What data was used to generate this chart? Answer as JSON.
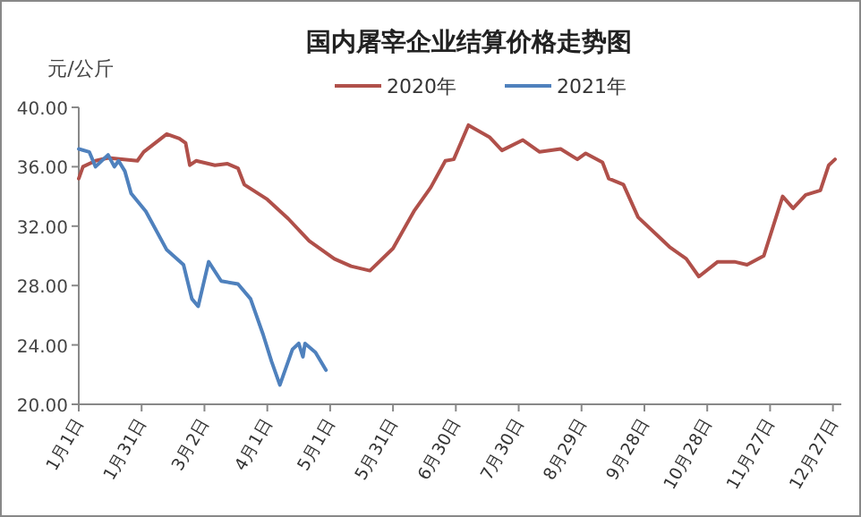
{
  "chart_data": {
    "type": "line",
    "title": "国内屠宰企业结算价格走势图",
    "ylabel": "元/公斤",
    "xlim": [
      "--01-01",
      "--12-31"
    ],
    "xticks": [
      {
        "value": "--01-01",
        "label": "1月1日"
      },
      {
        "value": "--01-31",
        "label": "1月31日"
      },
      {
        "value": "--03-02",
        "label": "3月2日"
      },
      {
        "value": "--04-01",
        "label": "4月1日"
      },
      {
        "value": "--05-01",
        "label": "5月1日"
      },
      {
        "value": "--05-31",
        "label": "5月31日"
      },
      {
        "value": "--06-30",
        "label": "6月30日"
      },
      {
        "value": "--07-30",
        "label": "7月30日"
      },
      {
        "value": "--08-29",
        "label": "8月29日"
      },
      {
        "value": "--09-28",
        "label": "9月28日"
      },
      {
        "value": "--10-28",
        "label": "10月28日"
      },
      {
        "value": "--11-27",
        "label": "11月27日"
      },
      {
        "value": "--12-27",
        "label": "12月27日"
      }
    ],
    "ylim": [
      20,
      40
    ],
    "yticks": [
      {
        "value": 20,
        "label": "20.00"
      },
      {
        "value": 24,
        "label": "24.00"
      },
      {
        "value": 28,
        "label": "28.00"
      },
      {
        "value": 32,
        "label": "32.00"
      },
      {
        "value": 36,
        "label": "36.00"
      },
      {
        "value": 40,
        "label": "40.00"
      }
    ],
    "grid": false,
    "legend": "top",
    "marker": "none",
    "line_style": "solid",
    "series": [
      {
        "name": "2020年",
        "color": "#b0504a",
        "x": [
          "--01-01",
          "--01-03",
          "--01-09",
          "--01-15",
          "--01-29",
          "--02-01",
          "--02-12",
          "--02-18",
          "--02-21",
          "--02-23",
          "--02-26",
          "--03-07",
          "--03-13",
          "--03-18",
          "--03-21",
          "--04-01",
          "--04-11",
          "--04-21",
          "--05-03",
          "--05-11",
          "--05-20",
          "--05-31",
          "--06-10",
          "--06-18",
          "--06-25",
          "--06-29",
          "--07-06",
          "--07-16",
          "--07-22",
          "--08-01",
          "--08-09",
          "--08-19",
          "--08-27",
          "--08-31",
          "--09-08",
          "--09-11",
          "--09-18",
          "--09-25",
          "--10-10",
          "--10-18",
          "--10-24",
          "--11-02",
          "--11-10",
          "--11-16",
          "--11-24",
          "--12-03",
          "--12-08",
          "--12-14",
          "--12-21",
          "--12-25",
          "--12-28"
        ],
        "values": [
          35.2,
          36.0,
          36.4,
          36.6,
          36.4,
          37.0,
          38.2,
          37.9,
          37.6,
          36.1,
          36.4,
          36.1,
          36.2,
          35.9,
          34.8,
          33.8,
          32.5,
          31.0,
          29.8,
          29.3,
          29.0,
          30.5,
          33.0,
          34.6,
          36.4,
          36.5,
          38.8,
          38.0,
          37.1,
          37.8,
          37.0,
          37.2,
          36.5,
          36.9,
          36.3,
          35.2,
          34.8,
          32.6,
          30.6,
          29.8,
          28.6,
          29.6,
          29.6,
          29.4,
          30.0,
          34.0,
          33.2,
          34.1,
          34.4,
          36.1,
          36.5
        ]
      },
      {
        "name": "2021年",
        "color": "#4f81bd",
        "x": [
          "--01-01",
          "--01-06",
          "--01-09",
          "--01-15",
          "--01-18",
          "--01-20",
          "--01-23",
          "--01-26",
          "--02-02",
          "--02-12",
          "--02-20",
          "--02-24",
          "--02-27",
          "--03-04",
          "--03-10",
          "--03-18",
          "--03-24",
          "--03-30",
          "--04-03",
          "--04-07",
          "--04-13",
          "--04-16",
          "--04-18",
          "--04-19",
          "--04-24",
          "--04-29"
        ],
        "values": [
          37.2,
          37.0,
          36.0,
          36.8,
          36.0,
          36.4,
          35.7,
          34.2,
          33.0,
          30.4,
          29.4,
          27.1,
          26.6,
          29.6,
          28.3,
          28.1,
          27.1,
          24.7,
          22.9,
          21.3,
          23.7,
          24.1,
          23.2,
          24.1,
          23.5,
          22.3
        ]
      }
    ]
  }
}
